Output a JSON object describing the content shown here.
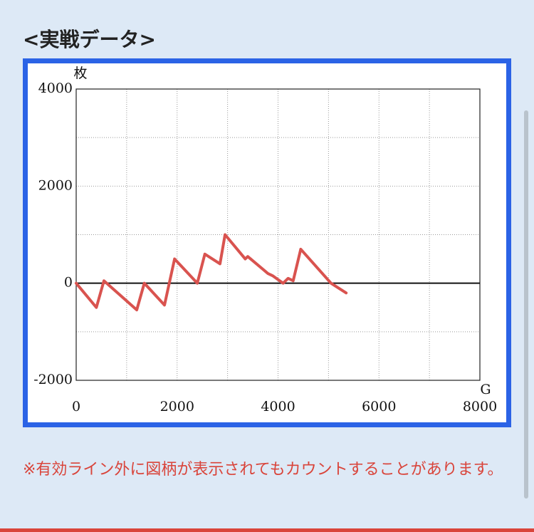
{
  "heading": "<実戦データ>",
  "chart_data": {
    "type": "line",
    "y_label": "枚",
    "x_label": "G",
    "x": [
      0,
      400,
      550,
      1200,
      1350,
      1750,
      1950,
      2400,
      2550,
      2850,
      2950,
      3350,
      3400,
      3800,
      3900,
      4100,
      4200,
      4300,
      4450,
      5050,
      5350
    ],
    "series": [
      {
        "color": "#d9534f",
        "values": [
          0,
          -500,
          50,
          -550,
          0,
          -450,
          500,
          0,
          600,
          400,
          1000,
          500,
          550,
          200,
          150,
          0,
          100,
          50,
          700,
          0,
          -200
        ]
      }
    ],
    "xlim": [
      0,
      8000
    ],
    "xticks": [
      0,
      2000,
      4000,
      6000,
      8000
    ],
    "xminorticks": [
      1000,
      3000,
      5000,
      7000
    ],
    "ylim": [
      -2000,
      4000
    ],
    "yticks": [
      -2000,
      0,
      2000,
      4000
    ],
    "yminorticks": [
      -1000,
      1000,
      3000
    ],
    "grid": true,
    "zero_line": 0
  },
  "note": "※有効ライン外に図柄が表示されてもカウントすることがあります。"
}
